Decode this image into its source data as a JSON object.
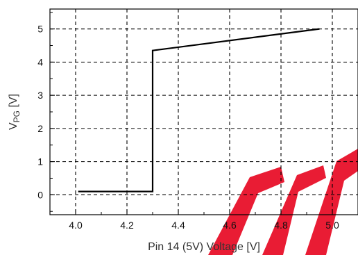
{
  "chart_data": {
    "type": "line",
    "title": "",
    "xlabel": "Pin 14 (5V) Voltage [V]",
    "ylabel": {
      "main": "V",
      "sub": "PG",
      "unit": " [V]"
    },
    "xlim": [
      3.9,
      5.1
    ],
    "ylim": [
      -0.6,
      5.6
    ],
    "x_ticks": [
      4.0,
      4.2,
      4.4,
      4.6,
      4.8,
      5.0
    ],
    "x_tick_labels": [
      "4.0",
      "4.2",
      "4.4",
      "4.6",
      "4.8",
      "5.0"
    ],
    "y_ticks": [
      0,
      1,
      2,
      3,
      4,
      5
    ],
    "y_tick_labels": [
      "0",
      "1",
      "2",
      "3",
      "4",
      "5"
    ],
    "grid": true,
    "grid_style": "dashed",
    "legend": "none",
    "line_color": "#000000",
    "grid_color": "#000000",
    "watermark_color": "#e8102a",
    "series": [
      {
        "values": [
          {
            "x": 4.01,
            "y": 0.1
          },
          {
            "x": 4.3,
            "y": 0.1
          },
          {
            "x": 4.3,
            "y": 4.35
          },
          {
            "x": 4.95,
            "y": 5.0
          }
        ]
      }
    ]
  }
}
